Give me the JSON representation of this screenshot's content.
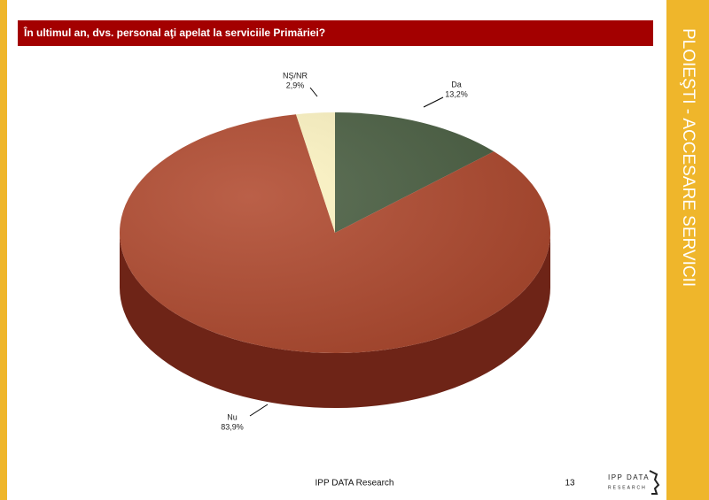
{
  "chart_data": {
    "type": "pie",
    "title": "În ultimul an, dvs. personal aţi apelat la serviciile Primăriei?",
    "categories": [
      "Da",
      "Nu",
      "NŞ/NR"
    ],
    "values": [
      13.2,
      83.9,
      2.9
    ],
    "value_labels": [
      "13,2%",
      "83,9%",
      "2,9%"
    ],
    "colors": [
      "#4b6043",
      "#b14a2f",
      "#fff6c4"
    ]
  },
  "slide": {
    "side_title": "PLOIEŞTI - ACCESARE SERVICII",
    "footer": "IPP DATA Research",
    "page_number": "13",
    "logo": [
      "IPP DATA",
      "RESEARCH"
    ]
  }
}
